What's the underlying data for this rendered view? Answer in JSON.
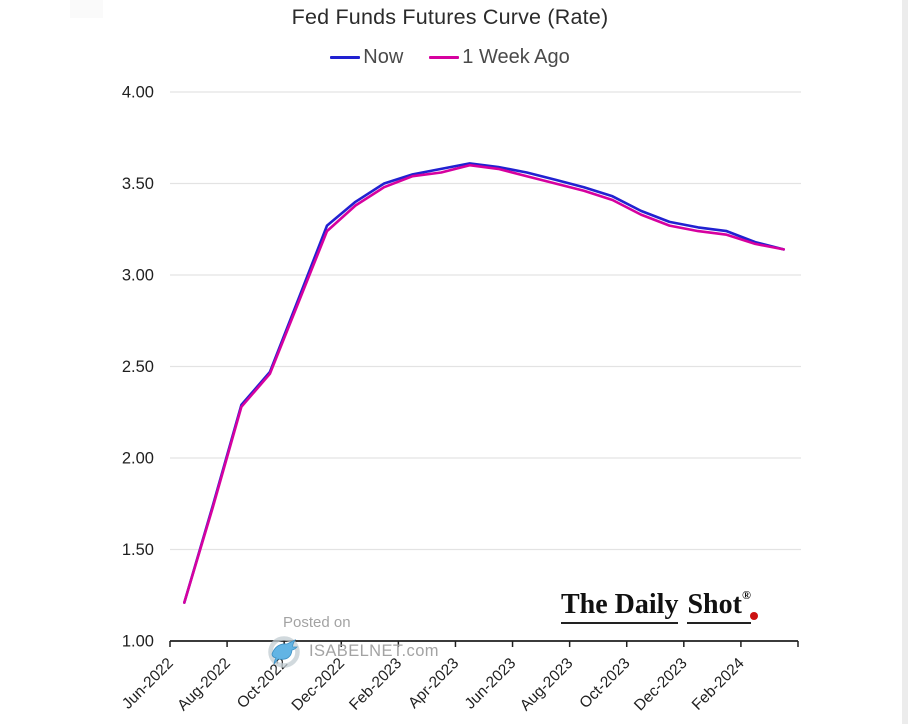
{
  "page": {
    "background": "#ffffff",
    "right_strip_color": "#ececec"
  },
  "header": {
    "title": "Fed Funds Futures Curve (Rate)"
  },
  "chart_data": {
    "type": "line",
    "title": "Fed Funds Futures Curve (Rate)",
    "xlabel": "",
    "ylabel": "",
    "x": [
      "Jun-2022",
      "Jul-2022",
      "Aug-2022",
      "Sep-2022",
      "Oct-2022",
      "Nov-2022",
      "Dec-2022",
      "Jan-2023",
      "Feb-2023",
      "Mar-2023",
      "Apr-2023",
      "May-2023",
      "Jun-2023",
      "Jul-2023",
      "Aug-2023",
      "Sep-2023",
      "Oct-2023",
      "Nov-2023",
      "Dec-2023",
      "Jan-2024",
      "Feb-2024",
      "Mar-2024"
    ],
    "series": [
      {
        "name": "Now",
        "color": "#2121d1",
        "values": [
          1.21,
          1.74,
          2.29,
          2.47,
          2.87,
          3.27,
          3.4,
          3.5,
          3.55,
          3.58,
          3.61,
          3.59,
          3.56,
          3.52,
          3.48,
          3.43,
          3.35,
          3.29,
          3.26,
          3.24,
          3.18,
          3.14
        ]
      },
      {
        "name": "1 Week Ago",
        "color": "#d6019f",
        "values": [
          1.21,
          1.73,
          2.28,
          2.46,
          2.85,
          3.24,
          3.38,
          3.48,
          3.54,
          3.56,
          3.6,
          3.58,
          3.54,
          3.5,
          3.46,
          3.41,
          3.33,
          3.27,
          3.24,
          3.22,
          3.17,
          3.14
        ]
      }
    ],
    "ylim": [
      1.0,
      4.0
    ],
    "y_tick_labels": [
      "1.00",
      "1.50",
      "2.00",
      "2.50",
      "3.00",
      "3.50",
      "4.00"
    ],
    "x_tick_labels": [
      "Jun-2022",
      "Aug-2022",
      "Oct-2022",
      "Dec-2022",
      "Feb-2023",
      "Apr-2023",
      "Jun-2023",
      "Aug-2023",
      "Oct-2023",
      "Dec-2023",
      "Feb-2024"
    ],
    "grid": "horizontal",
    "legend_position": "top",
    "axis_color": "#1f1f1f",
    "grid_color": "#e3e3e3",
    "tick_label_color": "#1f1f1f"
  },
  "watermark": {
    "posted_on": "Posted on",
    "site": "ISABELNET.com",
    "bird_body_color": "#62b4e4",
    "bird_ring_color": "#c2ccd2"
  },
  "logo": {
    "part1": "The Daily",
    "part2": "Shot",
    "reg": "®",
    "dot_color": "#cc1111"
  }
}
